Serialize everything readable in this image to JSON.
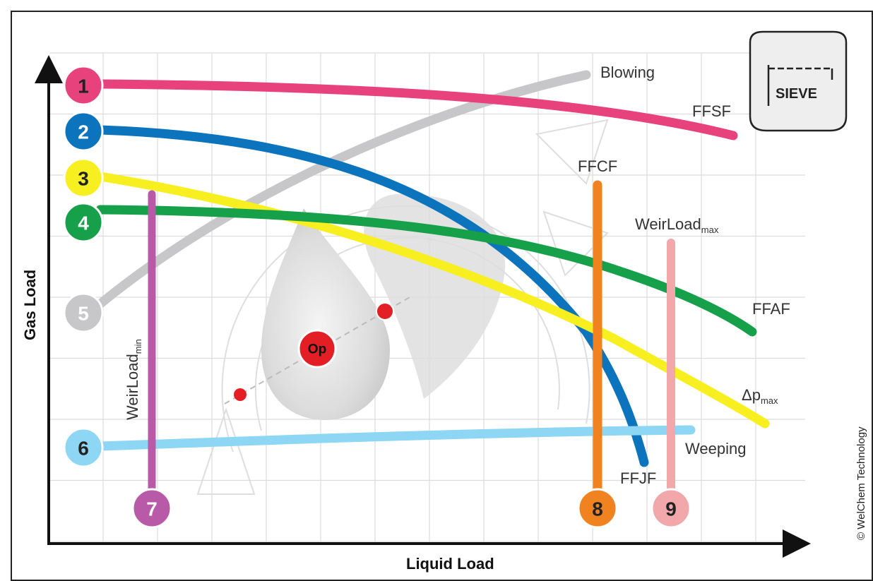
{
  "axes": {
    "x_label": "Liquid Load",
    "y_label": "Gas Load"
  },
  "logo": {
    "label": "SIEVE"
  },
  "operating_point": {
    "label": "Op"
  },
  "copyright": "© WelChem Technology",
  "colors": {
    "c1": "#e8427c",
    "c2": "#0b74bd",
    "c3": "#f7ef1f",
    "c4": "#16a04a",
    "c5": "#c7c7c9",
    "c6": "#8dd6f4",
    "c7": "#b85aa8",
    "c8": "#f08220",
    "c9": "#f2a7aa"
  },
  "limits": [
    {
      "number": "1",
      "name": "FFSF",
      "color": "#e8427c",
      "text_color": "#222222"
    },
    {
      "number": "2",
      "name": "FFJF",
      "color": "#0b74bd",
      "text_color": "#ffffff"
    },
    {
      "number": "3",
      "name_main": "Δp",
      "name_sub": "max",
      "color": "#f7ef1f",
      "text_color": "#222222"
    },
    {
      "number": "4",
      "name": "FFAF",
      "color": "#16a04a",
      "text_color": "#ffffff"
    },
    {
      "number": "5",
      "name": "Blowing",
      "color": "#c7c7c9",
      "text_color": "#ffffff"
    },
    {
      "number": "6",
      "name": "Weeping",
      "color": "#8dd6f4",
      "text_color": "#222222"
    },
    {
      "number": "7",
      "name_main": "WeirLoad",
      "name_sub": "min",
      "color": "#b85aa8",
      "text_color": "#ffffff"
    },
    {
      "number": "8",
      "name": "FFCF",
      "color": "#f08220",
      "text_color": "#222222"
    },
    {
      "number": "9",
      "name_main": "WeirLoad",
      "name_sub": "max",
      "color": "#f2a7aa",
      "text_color": "#222222"
    }
  ]
}
